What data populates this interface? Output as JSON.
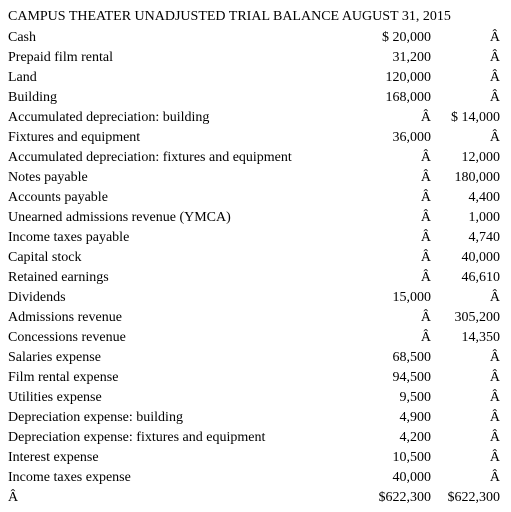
{
  "title": "CAMPUS THEATER UNADJUSTED TRIAL BALANCE AUGUST 31, 2015",
  "rows": [
    {
      "account": "Cash",
      "debit": "$ 20,000",
      "credit": "Â"
    },
    {
      "account": "Prepaid film rental",
      "debit": "31,200",
      "credit": "Â"
    },
    {
      "account": "Land",
      "debit": "120,000",
      "credit": "Â"
    },
    {
      "account": "Building",
      "debit": "168,000",
      "credit": "Â"
    },
    {
      "account": "Accumulated depreciation: building",
      "debit": "Â",
      "credit": "$ 14,000"
    },
    {
      "account": "Fixtures and equipment",
      "debit": "36,000",
      "credit": "Â"
    },
    {
      "account": "Accumulated depreciation: fixtures and equipment",
      "debit": "Â",
      "credit": "12,000"
    },
    {
      "account": "Notes payable",
      "debit": "Â",
      "credit": "180,000"
    },
    {
      "account": "Accounts payable",
      "debit": "Â",
      "credit": "4,400"
    },
    {
      "account": "Unearned admissions revenue (YMCA)",
      "debit": "Â",
      "credit": "1,000"
    },
    {
      "account": "Income taxes payable",
      "debit": "Â",
      "credit": "4,740"
    },
    {
      "account": "Capital stock",
      "debit": "Â",
      "credit": "40,000"
    },
    {
      "account": "Retained earnings",
      "debit": "Â",
      "credit": "46,610"
    },
    {
      "account": "Dividends",
      "debit": "15,000",
      "credit": "Â"
    },
    {
      "account": "Admissions revenue",
      "debit": "Â",
      "credit": "305,200"
    },
    {
      "account": "Concessions revenue",
      "debit": "Â",
      "credit": "14,350"
    },
    {
      "account": "Salaries expense",
      "debit": "68,500",
      "credit": "Â"
    },
    {
      "account": "Film rental expense",
      "debit": "94,500",
      "credit": "Â"
    },
    {
      "account": "Utilities expense",
      "debit": "9,500",
      "credit": "Â"
    },
    {
      "account": "Depreciation expense: building",
      "debit": "4,900",
      "credit": "Â"
    },
    {
      "account": "Depreciation expense: fixtures and equipment",
      "debit": "4,200",
      "credit": "Â"
    },
    {
      "account": "Interest expense",
      "debit": "10,500",
      "credit": "Â"
    },
    {
      "account": "Income taxes expense",
      "debit": "40,000",
      "credit": "Â"
    },
    {
      "account": "Â",
      "debit": "$622,300",
      "credit": "$622,300"
    }
  ]
}
